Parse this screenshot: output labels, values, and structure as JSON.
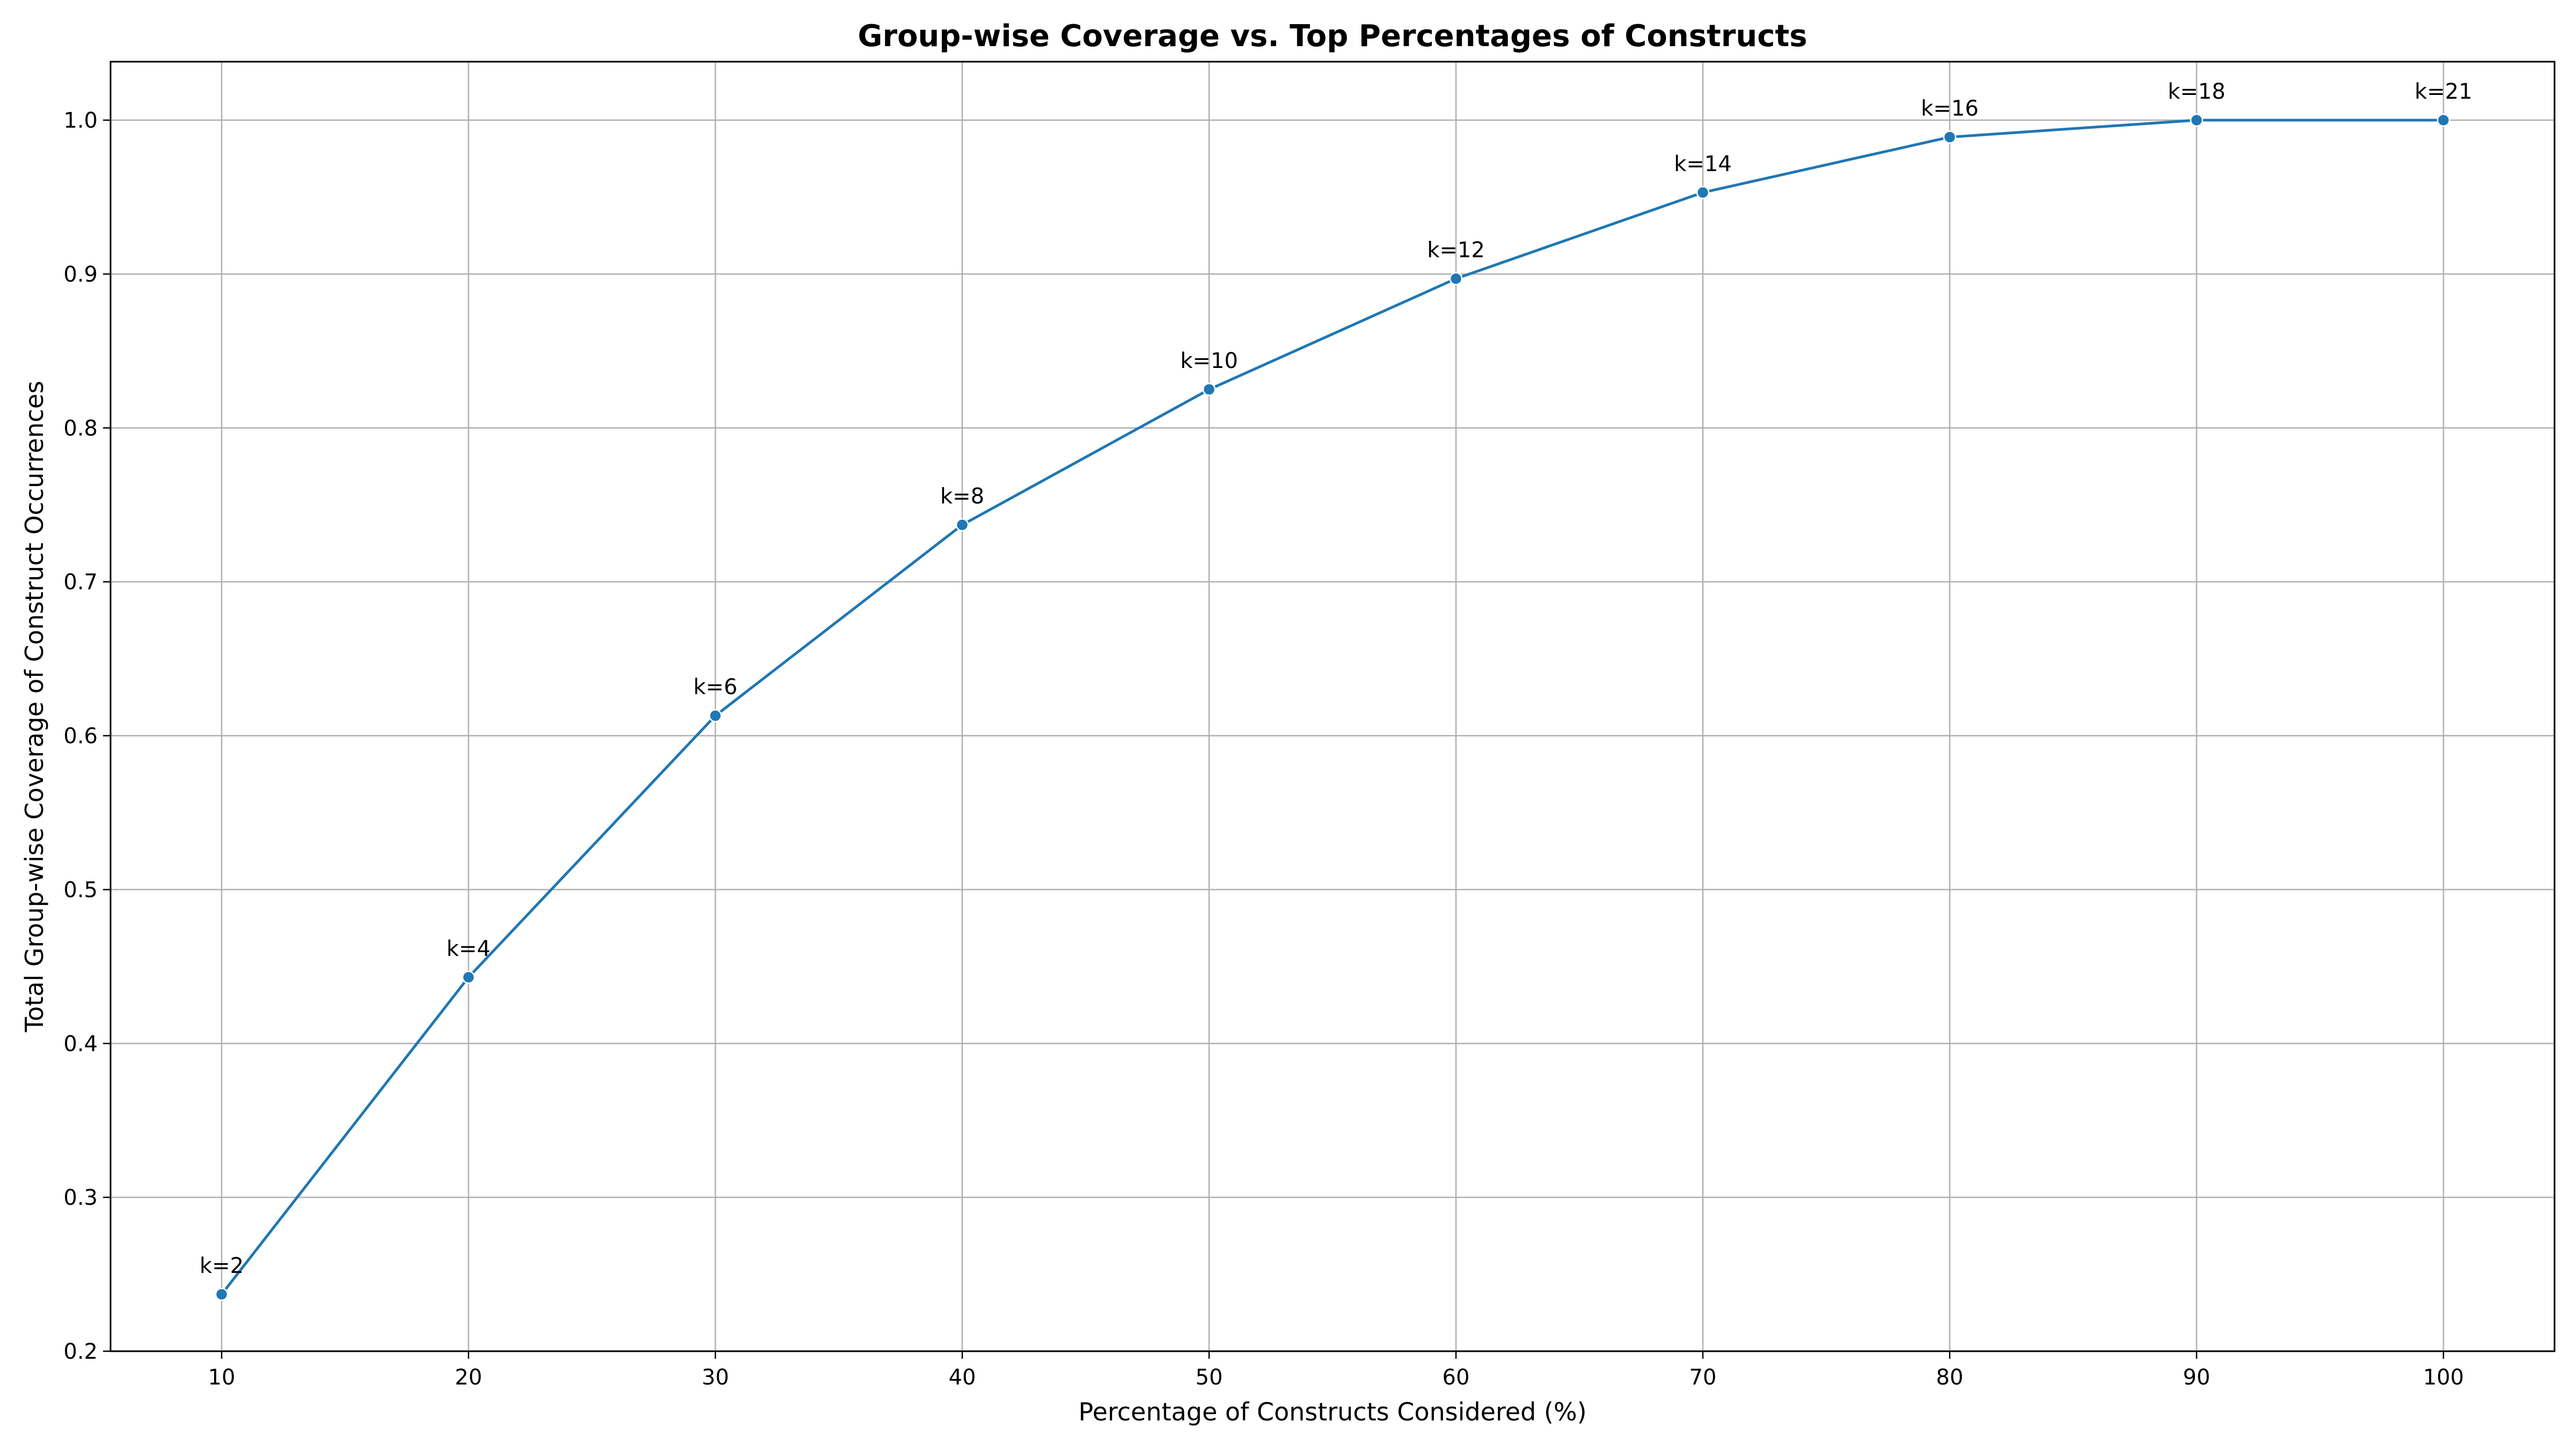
{
  "chart_data": {
    "type": "line",
    "title": "Group-wise Coverage vs. Top Percentages of Constructs",
    "xlabel": "Percentage of Constructs Considered (%)",
    "ylabel": "Total Group-wise Coverage of Construct Occurrences",
    "xlim": [
      5.5,
      104.5
    ],
    "ylim": [
      0.2,
      1.038
    ],
    "x_ticks": [
      10,
      20,
      30,
      40,
      50,
      60,
      70,
      80,
      90,
      100
    ],
    "y_ticks": [
      0.2,
      0.3,
      0.4,
      0.5,
      0.6,
      0.7,
      0.8,
      0.9,
      1.0
    ],
    "x_tick_labels": [
      "10",
      "20",
      "30",
      "40",
      "50",
      "60",
      "70",
      "80",
      "90",
      "100"
    ],
    "y_tick_labels": [
      "0.2",
      "0.3",
      "0.4",
      "0.5",
      "0.6",
      "0.7",
      "0.8",
      "0.9",
      "1.0"
    ],
    "grid": true,
    "color": "#1f77b4",
    "series": [
      {
        "x": [
          10,
          20,
          30,
          40,
          50,
          60,
          70,
          80,
          90,
          100
        ],
        "y": [
          0.237,
          0.443,
          0.613,
          0.737,
          0.825,
          0.897,
          0.953,
          0.989,
          1.0,
          1.0
        ],
        "labels": [
          "k=2",
          "k=4",
          "k=6",
          "k=8",
          "k=10",
          "k=12",
          "k=14",
          "k=16",
          "k=18",
          "k=21"
        ]
      }
    ]
  }
}
